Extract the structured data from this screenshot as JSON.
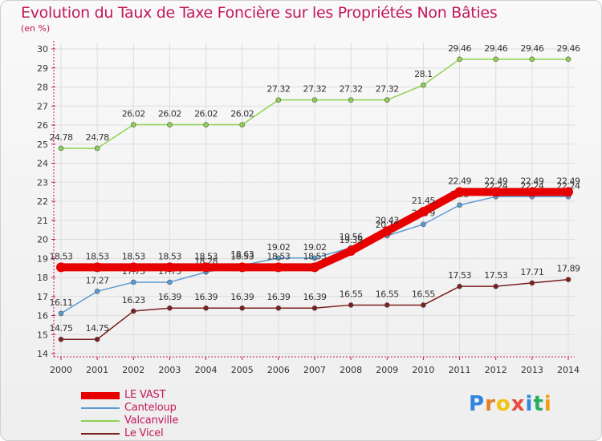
{
  "title": "Evolution du Taux de Taxe Foncière sur les Propriétés Non Bâties",
  "unit_label": "(en %)",
  "logo": {
    "text": "Proxiti",
    "letters": [
      "P",
      "r",
      "o",
      "x",
      "i",
      "t",
      "i"
    ],
    "colors": [
      "#2e86de",
      "#e67e22",
      "#f1c40f",
      "#e74c3c",
      "#2e86de",
      "#27ae60",
      "#f39c12"
    ]
  },
  "chart_data": {
    "type": "line",
    "title": "Evolution du Taux de Taxe Foncière sur les Propriétés Non Bâties",
    "ylabel": "(en %)",
    "xlabel": "",
    "x": [
      "2000",
      "2001",
      "2002",
      "2003",
      "2004",
      "2005",
      "2006",
      "2007",
      "2008",
      "2009",
      "2010",
      "2011",
      "2012",
      "2013",
      "2014"
    ],
    "ylim": [
      14,
      30
    ],
    "yticks": [
      "14",
      "15",
      "16",
      "17",
      "18",
      "19",
      "20",
      "21",
      "22",
      "23",
      "24",
      "25",
      "26",
      "27",
      "28",
      "29",
      "30"
    ],
    "grid": true,
    "series": [
      {
        "name": "LE VAST",
        "color": "#e60000",
        "values": [
          18.53,
          18.53,
          18.53,
          18.53,
          18.53,
          18.53,
          18.53,
          18.53,
          19.39,
          20.43,
          21.45,
          22.49,
          22.49,
          22.49,
          22.49
        ],
        "labels": [
          "18.53",
          "18.53",
          "18.53",
          "18.53",
          "18.53",
          "18.53",
          "18.53",
          "18.53",
          "19.39",
          "20.43",
          "21.45",
          "22.49",
          "22.49",
          "22.49",
          "22.49"
        ]
      },
      {
        "name": "Canteloup",
        "color": "#5b9bd5",
        "values": [
          16.11,
          17.27,
          17.75,
          17.75,
          18.28,
          18.63,
          19.02,
          19.02,
          19.56,
          20.19,
          20.79,
          21.8,
          22.24,
          22.24,
          22.24
        ],
        "labels": [
          "16.11",
          "17.27",
          "17.75",
          "17.75",
          "18.28",
          "18.63",
          "19.02",
          "19.02",
          "19.56",
          "20.19",
          "20.79",
          "21.8",
          "22.24",
          "22.24",
          "22.24"
        ]
      },
      {
        "name": "Valcanville",
        "color": "#8fd14f",
        "values": [
          24.78,
          24.78,
          26.02,
          26.02,
          26.02,
          26.02,
          27.32,
          27.32,
          27.32,
          27.32,
          28.1,
          29.46,
          29.46,
          29.46,
          29.46
        ],
        "labels": [
          "24.78",
          "24.78",
          "26.02",
          "26.02",
          "26.02",
          "26.02",
          "27.32",
          "27.32",
          "27.32",
          "27.32",
          "28.1",
          "29.46",
          "29.46",
          "29.46",
          "29.46"
        ]
      },
      {
        "name": "Le Vicel",
        "color": "#7b1f1f",
        "values": [
          14.75,
          14.75,
          16.23,
          16.39,
          16.39,
          16.39,
          16.39,
          16.39,
          16.55,
          16.55,
          16.55,
          17.53,
          17.53,
          17.71,
          17.89
        ],
        "labels": [
          "14.75",
          "14.75",
          "16.23",
          "16.39",
          "16.39",
          "16.39",
          "16.39",
          "16.39",
          "16.55",
          "16.55",
          "16.55",
          "17.53",
          "17.53",
          "17.71",
          "17.89"
        ]
      }
    ]
  }
}
